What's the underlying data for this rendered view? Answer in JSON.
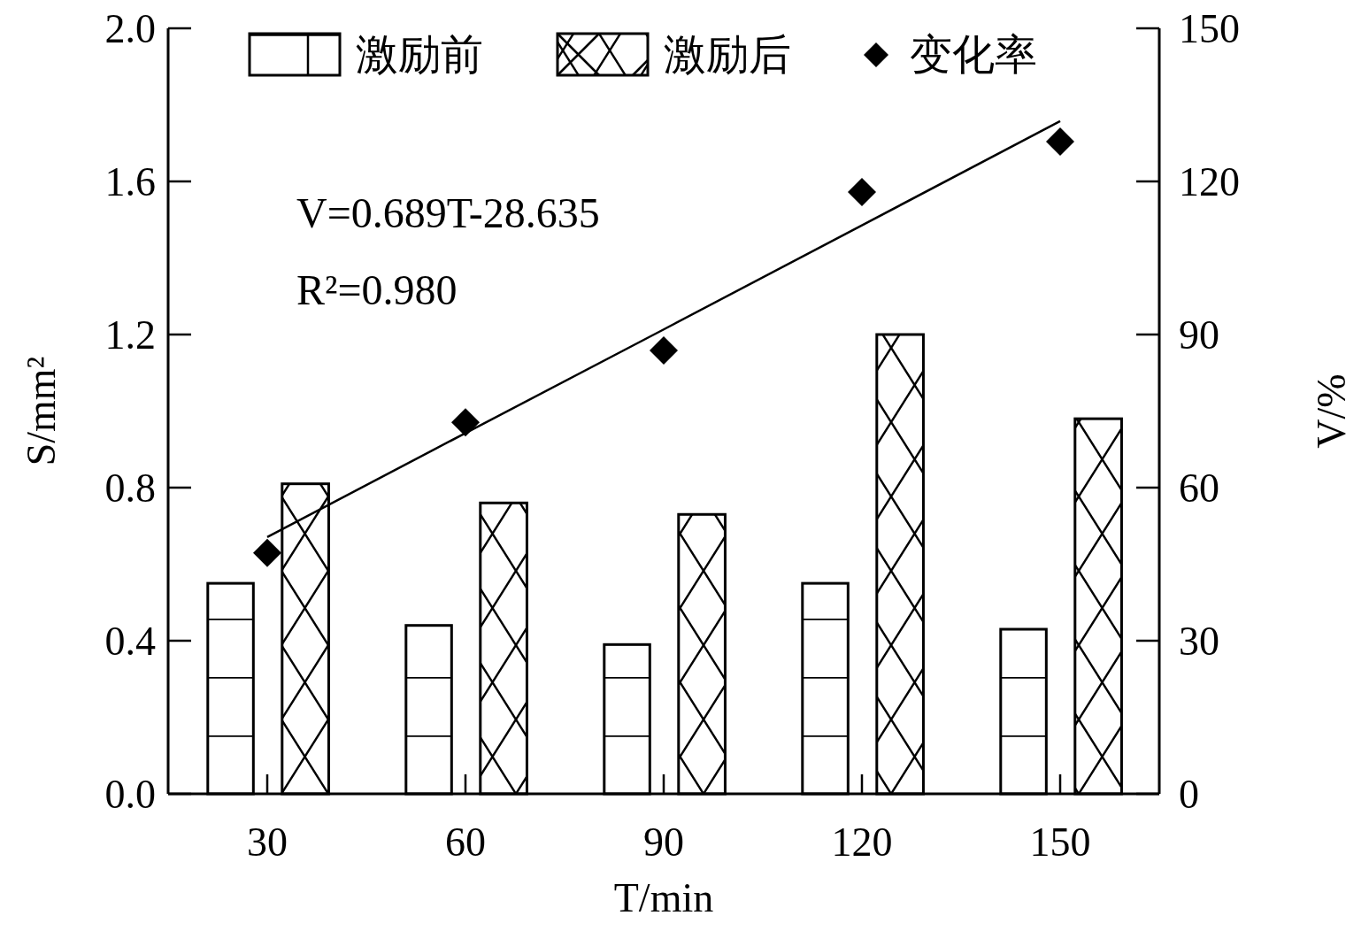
{
  "chart_data": {
    "type": "bar",
    "xlabel": "T/min",
    "ylabel": "S/mm²",
    "y2label": "V/%",
    "categories": [
      "30",
      "60",
      "90",
      "120",
      "150"
    ],
    "series": [
      {
        "name": "激励前",
        "color": "#000000",
        "values": [
          0.55,
          0.44,
          0.39,
          0.55,
          0.43
        ]
      },
      {
        "name": "激励后",
        "color": "#000000",
        "values": [
          0.81,
          0.76,
          0.73,
          1.2,
          0.98
        ]
      },
      {
        "name": "变化率",
        "type": "scatter",
        "axis": "y2",
        "color": "#000000",
        "marker": "diamond",
        "x": [
          "30",
          "60",
          "90",
          "120",
          "150"
        ],
        "values": [
          47.2,
          72.8,
          86.9,
          117.9,
          127.8
        ]
      },
      {
        "type": "line",
        "axis": "y2",
        "color": "#000000",
        "values": [
          50.3,
          70.7,
          91.0,
          111.4,
          131.8
        ]
      }
    ],
    "ylim": [
      0,
      2
    ],
    "yticks": [
      {
        "value": 0,
        "label": "0.0"
      },
      0.4,
      0.8,
      1.2,
      1.6,
      {
        "value": 2,
        "label": "2.0"
      }
    ],
    "y2lim": [
      0,
      150
    ],
    "y2ticks": [
      0,
      30,
      60,
      90,
      120,
      150
    ],
    "annotations": [
      "V=0.689T-28.635",
      "R²=0.980"
    ],
    "legend": "top",
    "grid": false
  }
}
